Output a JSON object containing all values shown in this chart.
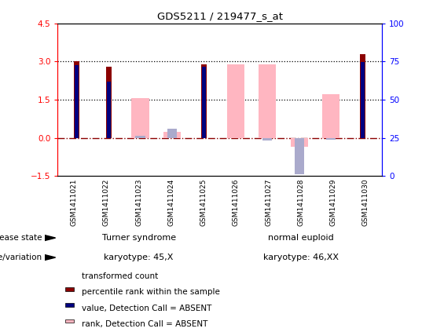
{
  "title": "GDS5211 / 219477_s_at",
  "samples": [
    "GSM1411021",
    "GSM1411022",
    "GSM1411023",
    "GSM1411024",
    "GSM1411025",
    "GSM1411026",
    "GSM1411027",
    "GSM1411028",
    "GSM1411029",
    "GSM1411030"
  ],
  "transformed_count": [
    3.0,
    2.8,
    null,
    null,
    2.88,
    null,
    null,
    null,
    null,
    3.3
  ],
  "percentile_rank": [
    2.85,
    2.2,
    null,
    null,
    2.8,
    null,
    null,
    null,
    null,
    2.97
  ],
  "value_absent": [
    null,
    null,
    1.55,
    0.22,
    null,
    2.87,
    2.87,
    -0.35,
    1.72,
    null
  ],
  "rank_absent": [
    null,
    null,
    0.08,
    0.35,
    null,
    null,
    -0.12,
    -1.42,
    -0.08,
    null
  ],
  "ylim_left": [
    -1.5,
    4.5
  ],
  "ylim_right": [
    0,
    100
  ],
  "yticks_left": [
    -1.5,
    0.0,
    1.5,
    3.0,
    4.5
  ],
  "yticks_right": [
    0,
    25,
    50,
    75,
    100
  ],
  "hlines_dotted": [
    1.5,
    3.0
  ],
  "hline_dashdot": 0.0,
  "disease_groups": [
    {
      "label": "Turner syndrome",
      "start": 0,
      "end": 5,
      "color": "#90EE90"
    },
    {
      "label": "normal euploid",
      "start": 5,
      "end": 10,
      "color": "#5ECC5E"
    }
  ],
  "genotype_groups": [
    {
      "label": "karyotype: 45,X",
      "start": 0,
      "end": 5,
      "color": "#EE82EE"
    },
    {
      "label": "karyotype: 46,XX",
      "start": 5,
      "end": 10,
      "color": "#CC55CC"
    }
  ],
  "row_labels": [
    "disease state",
    "genotype/variation"
  ],
  "color_transformed": "#8B0000",
  "color_percentile": "#000080",
  "color_value_absent": "#FFB6C1",
  "color_rank_absent": "#AAAACC",
  "legend_items": [
    {
      "label": "transformed count",
      "color": "#8B0000"
    },
    {
      "label": "percentile rank within the sample",
      "color": "#000080"
    },
    {
      "label": "value, Detection Call = ABSENT",
      "color": "#FFB6C1"
    },
    {
      "label": "rank, Detection Call = ABSENT",
      "color": "#AAAACC"
    }
  ]
}
